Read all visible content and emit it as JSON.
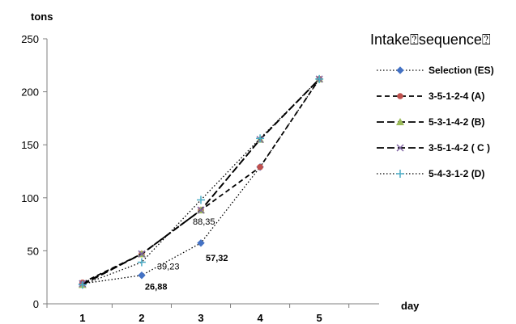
{
  "chart_data": {
    "type": "line",
    "ylabel": "tons",
    "xlabel": "day",
    "x": [
      1,
      2,
      3,
      4,
      5
    ],
    "xlim": [
      0.4,
      5.6
    ],
    "ylim": [
      0,
      250
    ],
    "yticks": [
      0,
      50,
      100,
      150,
      200,
      250
    ],
    "grid": false,
    "legend": {
      "title": "Intake⍰sequence⍰",
      "placement": "right"
    },
    "series": [
      {
        "name": "Selection (ES)",
        "values": [
          19,
          26.88,
          57.32,
          129,
          212
        ],
        "color": "#4472C4",
        "marker": "diamond",
        "dash": "dot"
      },
      {
        "name": "3-5-1-2-4 (A)",
        "values": [
          20,
          47,
          88.35,
          129,
          212
        ],
        "color": "#C0504D",
        "marker": "circle",
        "dash": "dash"
      },
      {
        "name": "5-3-1-4-2 (B)",
        "values": [
          18,
          47,
          88.35,
          155,
          212
        ],
        "color": "#9BBB59",
        "marker": "triangle",
        "dash": "longdash"
      },
      {
        "name": "3-5-1-4-2 ( C )",
        "values": [
          19,
          47,
          88.35,
          155,
          212
        ],
        "color": "#8064A2",
        "marker": "x",
        "dash": "longdash"
      },
      {
        "name": "5-4-3-1-2 (D)",
        "values": [
          18,
          39.23,
          98,
          156,
          212
        ],
        "color": "#4BACC6",
        "marker": "plus",
        "dash": "dot"
      }
    ],
    "annotations": [
      {
        "text": "26,88",
        "x": 2,
        "y": 26.88,
        "bold": true
      },
      {
        "text": "39,23",
        "x": 2,
        "y": 39.23,
        "bold": false
      },
      {
        "text": "88,35",
        "x": 3,
        "y": 88.35,
        "bold": false
      },
      {
        "text": "57,32",
        "x": 3,
        "y": 57.32,
        "bold": true
      }
    ]
  }
}
